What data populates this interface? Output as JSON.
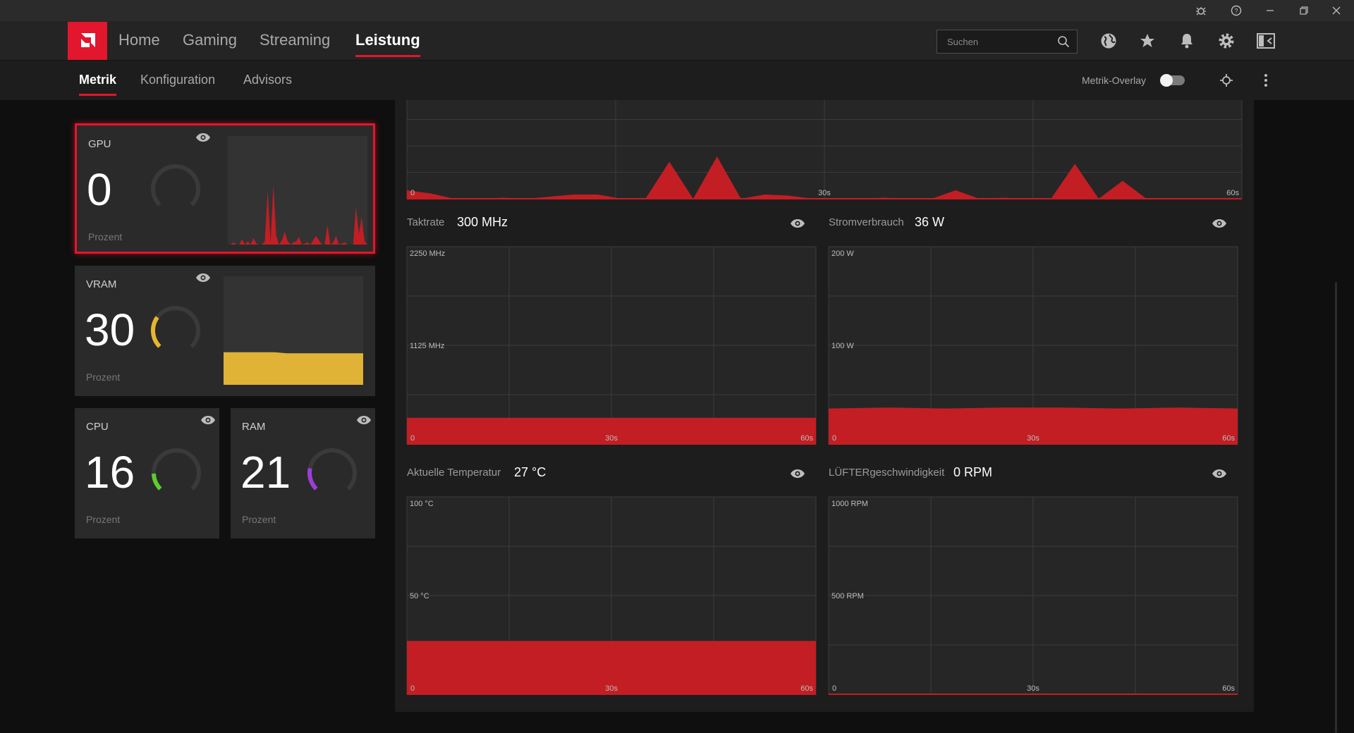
{
  "titlebar": {
    "icons": [
      "bug-icon",
      "help-icon",
      "minimize-icon",
      "restore-icon",
      "close-icon"
    ]
  },
  "nav": {
    "tabs": [
      {
        "label": "Home"
      },
      {
        "label": "Gaming"
      },
      {
        "label": "Streaming"
      },
      {
        "label": "Leistung"
      }
    ],
    "active": "Leistung",
    "search_placeholder": "Suchen",
    "icons": [
      "globe-icon",
      "star-icon",
      "bell-icon",
      "gear-icon",
      "layout-icon"
    ]
  },
  "subnav": {
    "tabs": [
      {
        "label": "Metrik"
      },
      {
        "label": "Konfiguration"
      },
      {
        "label": "Advisors"
      }
    ],
    "active": "Metrik",
    "overlay_label": "Metrik-Overlay",
    "overlay_enabled": false
  },
  "cards": {
    "gpu": {
      "title": "GPU",
      "value": "0",
      "unit": "Prozent",
      "level": 0.0,
      "color": "#e2162c",
      "selected": true
    },
    "vram": {
      "title": "VRAM",
      "value": "30",
      "unit": "Prozent",
      "level": 0.3,
      "color": "#e8b52e"
    },
    "cpu": {
      "title": "CPU",
      "value": "16",
      "unit": "Prozent",
      "level": 0.16,
      "color": "#5ecb2f"
    },
    "ram": {
      "title": "RAM",
      "value": "21",
      "unit": "Prozent",
      "level": 0.21,
      "color": "#9b3fd6"
    }
  },
  "colors": {
    "accent": "#e2162c",
    "area": "#c21e24",
    "panel": "#1d1d1d",
    "grid": "#3c3c3c"
  },
  "metrics": {
    "gpu_load": {
      "axis": {
        "min": "0",
        "mid": "30s",
        "max": "60s"
      }
    },
    "taktrate": {
      "label": "Taktrate",
      "value": "300 MHz",
      "ymax": "2250 MHz",
      "ymid": "1125 MHz",
      "xmin": "0",
      "xmid": "30s",
      "xmax": "60s"
    },
    "strom": {
      "label": "Stromverbrauch",
      "value": "36 W",
      "ymax": "200 W",
      "ymid": "100 W",
      "xmin": "0",
      "xmid": "30s",
      "xmax": "60s"
    },
    "temp": {
      "label": "Aktuelle Temperatur",
      "value": "27 °C",
      "ymax": "100 °C",
      "ymid": "50 °C",
      "xmin": "0",
      "xmid": "30s",
      "xmax": "60s"
    },
    "luefter": {
      "label": "LÜFTERgeschwindigkeit",
      "value": "0 RPM",
      "ymax": "1000 RPM",
      "ymid": "500 RPM",
      "xmin": "0",
      "xmid": "30s",
      "xmax": "60s"
    }
  },
  "chart_data": [
    {
      "type": "area",
      "series": [
        {
          "values": [
            8,
            5,
            0,
            0,
            1,
            0,
            2,
            4,
            4,
            0,
            0,
            35,
            0,
            40,
            0,
            4,
            3,
            0,
            0,
            0,
            1,
            0,
            0,
            8,
            0,
            1,
            0,
            0,
            33,
            0,
            17,
            0,
            0,
            0,
            0,
            0
          ]
        }
      ],
      "ylim": [
        0,
        100
      ],
      "x_ticks": [
        "0",
        "30s",
        "60s"
      ]
    },
    {
      "type": "area",
      "title": "Taktrate",
      "series": [
        {
          "values": [
            300,
            300,
            300,
            300,
            300,
            300,
            300,
            300
          ]
        }
      ],
      "ylim": [
        0,
        2250
      ],
      "y_ticks": [
        "2250 MHz",
        "1125 MHz"
      ],
      "x_ticks": [
        "0",
        "30s",
        "60s"
      ]
    },
    {
      "type": "area",
      "title": "Stromverbrauch",
      "series": [
        {
          "values": [
            36,
            37,
            36,
            37,
            37,
            36,
            37,
            36
          ]
        }
      ],
      "ylim": [
        0,
        200
      ],
      "y_ticks": [
        "200 W",
        "100 W"
      ],
      "x_ticks": [
        "0",
        "30s",
        "60s"
      ]
    },
    {
      "type": "area",
      "title": "Aktuelle Temperatur",
      "series": [
        {
          "values": [
            27,
            27,
            27,
            27,
            27,
            27,
            27,
            27
          ]
        }
      ],
      "ylim": [
        0,
        100
      ],
      "y_ticks": [
        "100 °C",
        "50 °C"
      ],
      "x_ticks": [
        "0",
        "30s",
        "60s"
      ]
    },
    {
      "type": "area",
      "title": "LÜFTERgeschwindigkeit",
      "series": [
        {
          "values": [
            0,
            0,
            0,
            0,
            0,
            0,
            0,
            0
          ]
        }
      ],
      "ylim": [
        0,
        1000
      ],
      "y_ticks": [
        "1000 RPM",
        "500 RPM"
      ],
      "x_ticks": [
        "0",
        "30s",
        "60s"
      ]
    }
  ],
  "mini_charts": {
    "gpu": [
      0,
      0,
      2,
      0,
      0,
      5,
      0,
      3,
      0,
      6,
      1,
      0,
      0,
      3,
      50,
      2,
      55,
      8,
      0,
      4,
      12,
      3,
      0,
      2,
      3,
      7,
      0,
      1,
      2,
      0,
      4,
      8,
      4,
      0,
      0,
      18,
      0,
      2,
      8,
      0,
      1,
      2,
      0,
      0,
      0,
      35,
      10,
      25,
      3,
      0
    ],
    "vram": [
      30,
      30,
      30,
      30,
      30,
      29,
      29,
      29,
      29,
      29,
      29,
      29
    ]
  }
}
